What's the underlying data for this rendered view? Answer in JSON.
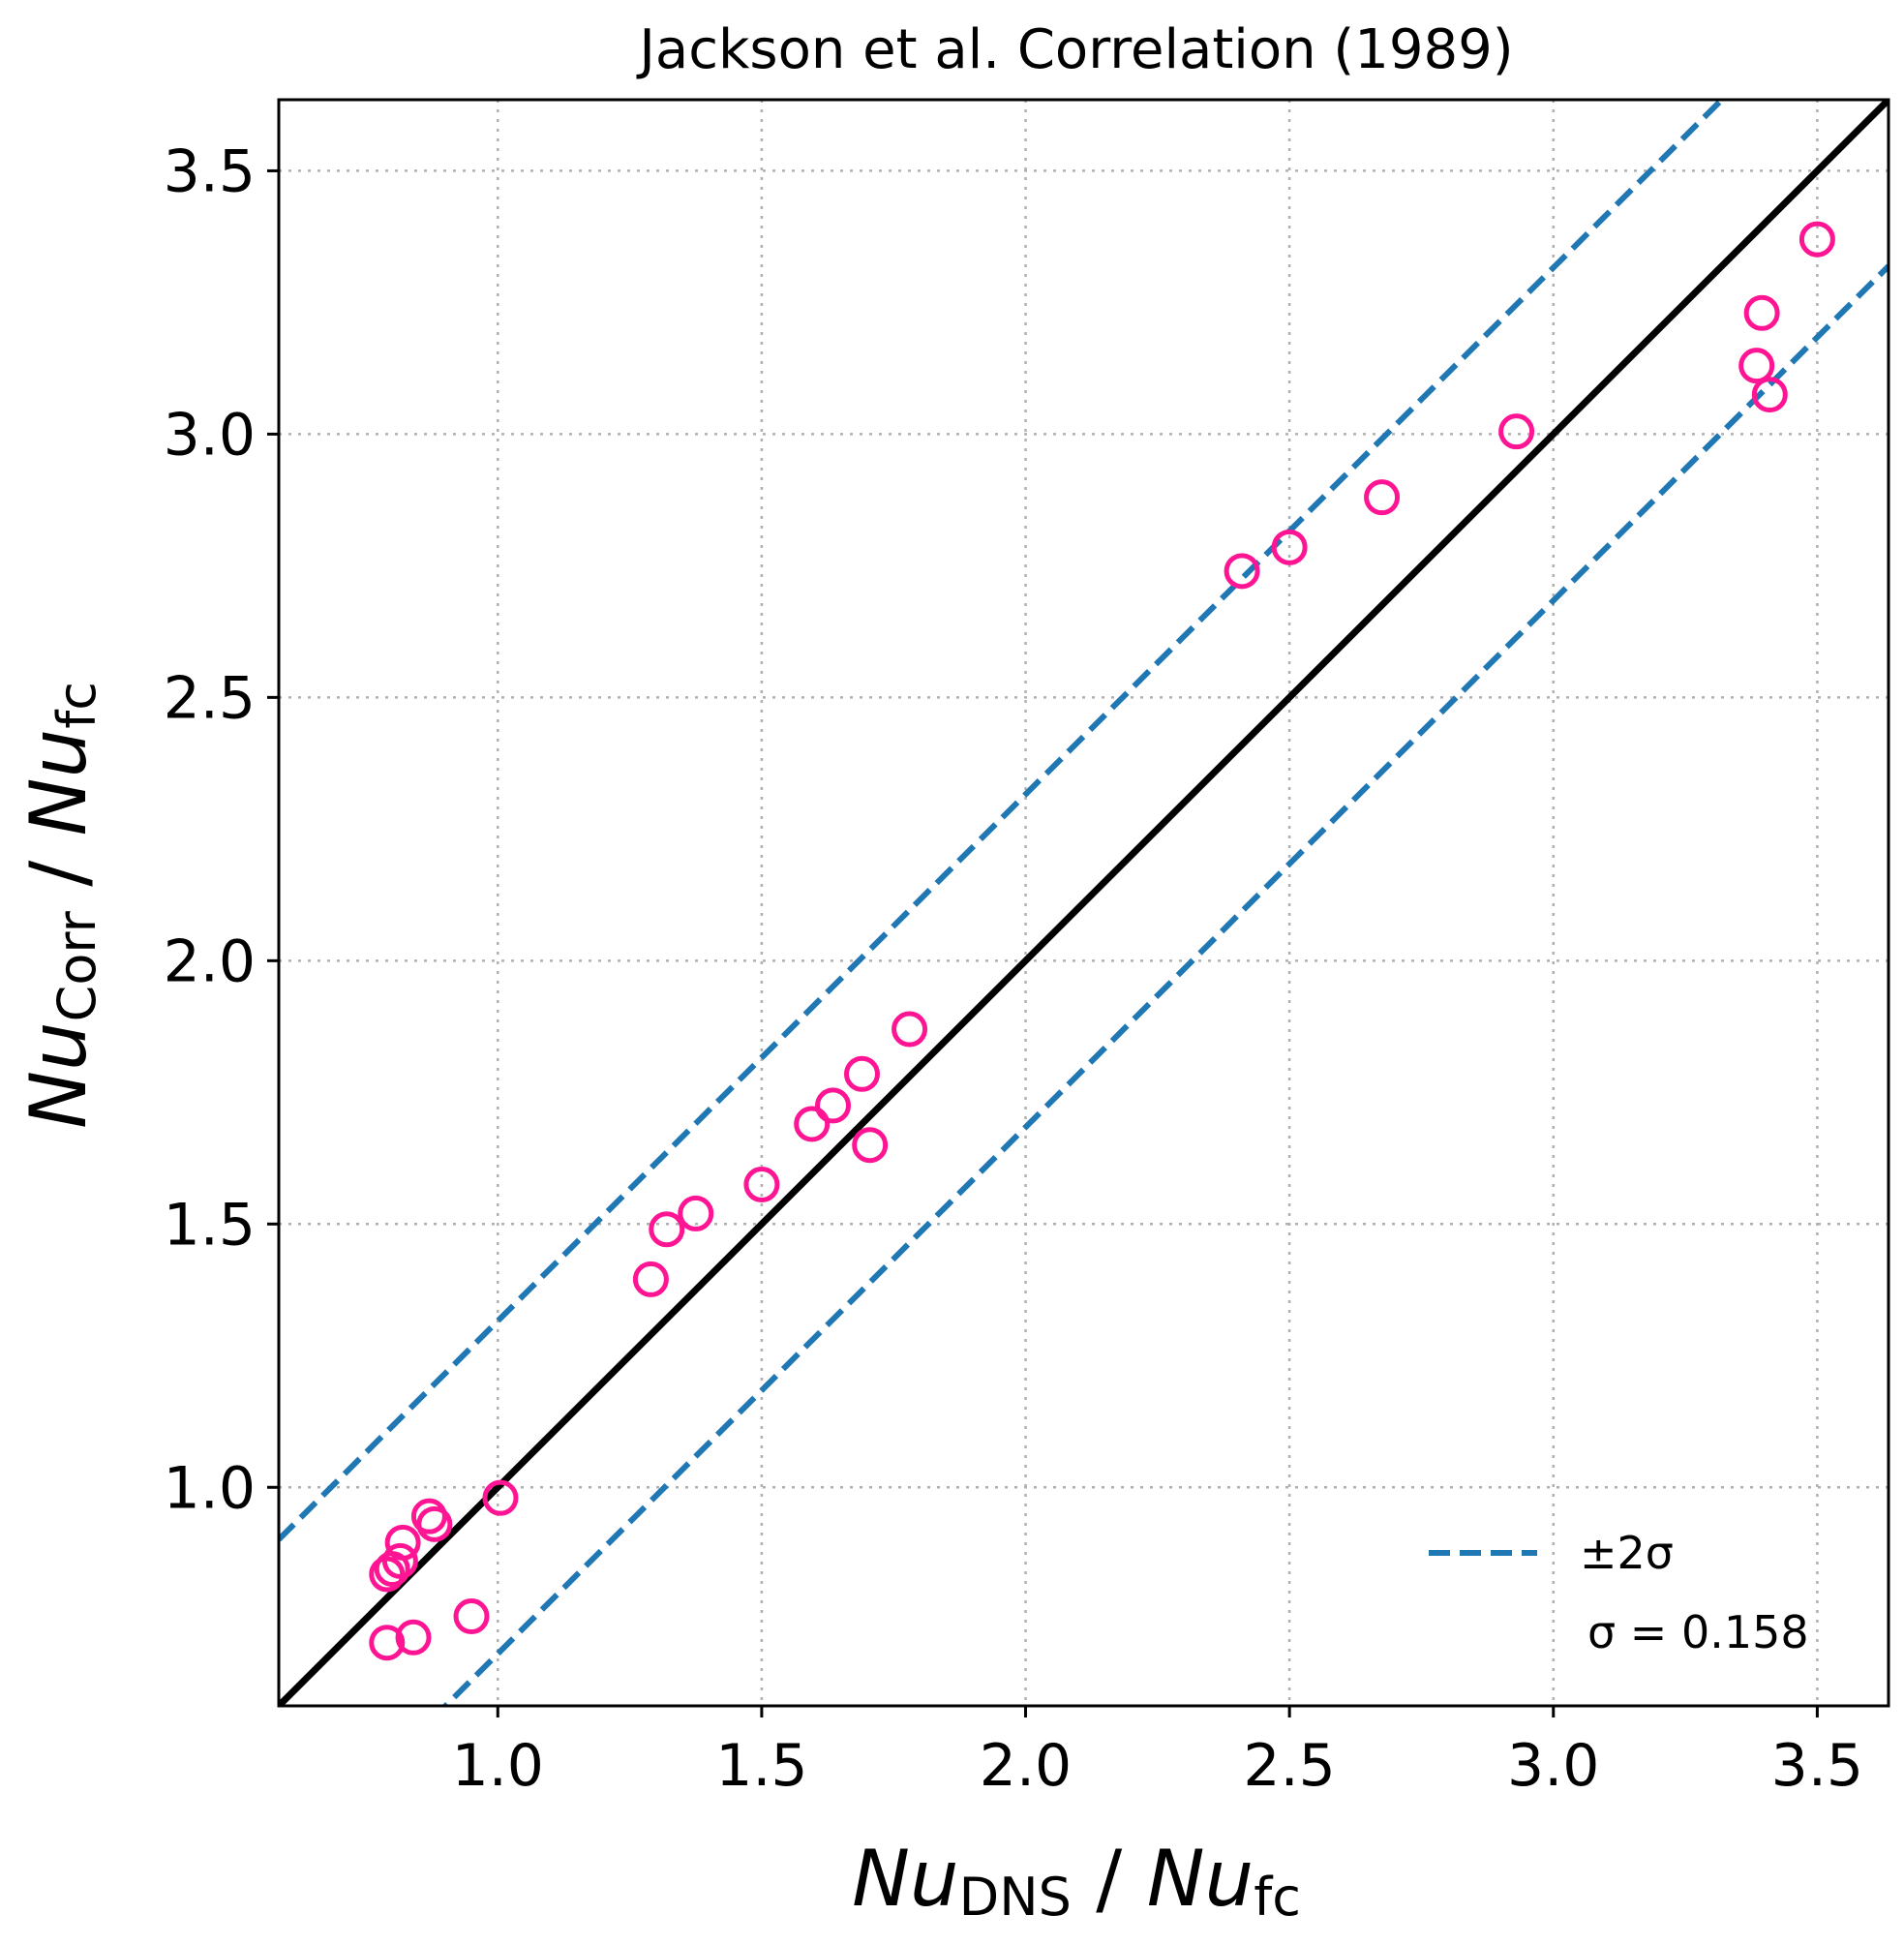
{
  "chart_data": {
    "type": "scatter",
    "title": "Jackson et al. Correlation (1989)",
    "xlabel": {
      "main": "Nu",
      "sub": "DNS",
      "sep": " / ",
      "main2": "Nu",
      "sub2": "fc"
    },
    "ylabel": {
      "main": "Nu",
      "sub": "Corr",
      "sep": " / ",
      "main2": "Nu",
      "sub2": "fc"
    },
    "xlim": [
      0.585,
      3.635
    ],
    "ylim": [
      0.585,
      3.635
    ],
    "xticks": [
      1.0,
      1.5,
      2.0,
      2.5,
      3.0,
      3.5
    ],
    "yticks": [
      1.0,
      1.5,
      2.0,
      2.5,
      3.0,
      3.5
    ],
    "xtick_labels": [
      "1.0",
      "1.5",
      "2.0",
      "2.5",
      "3.0",
      "3.5"
    ],
    "ytick_labels": [
      "1.0",
      "1.5",
      "2.0",
      "2.5",
      "3.0",
      "3.5"
    ],
    "grid": true,
    "sigma": 0.158,
    "legend": {
      "position": "bottom-right",
      "dash_label": "±2σ",
      "sigma_label": "σ = 0.158"
    },
    "colors": {
      "points": "#ff1493",
      "band": "#1f77b4",
      "identity": "#000000",
      "grid": "#b0b0b0"
    },
    "series": [
      {
        "x": [
          0.79,
          0.8,
          0.815,
          0.82,
          0.87,
          0.88,
          0.79,
          0.84,
          0.95,
          1.005,
          1.29,
          1.32,
          1.375,
          1.5,
          1.595,
          1.635,
          1.69,
          1.705,
          1.78,
          2.41,
          2.5,
          2.675,
          2.93,
          3.385,
          3.395,
          3.41,
          3.5
        ],
        "y": [
          0.835,
          0.845,
          0.86,
          0.895,
          0.945,
          0.93,
          0.705,
          0.715,
          0.755,
          0.98,
          1.395,
          1.49,
          1.52,
          1.575,
          1.69,
          1.725,
          1.785,
          1.65,
          1.87,
          2.74,
          2.785,
          2.88,
          3.005,
          3.13,
          3.23,
          3.075,
          3.37
        ]
      }
    ]
  }
}
